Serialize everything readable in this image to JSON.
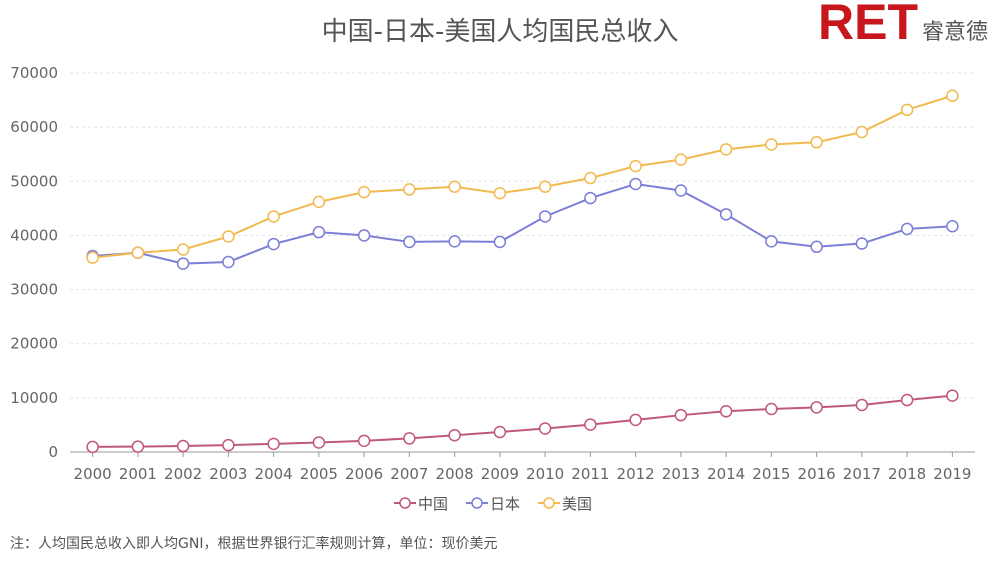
{
  "chart_data": {
    "type": "line",
    "title": "中国-日本-美国人均国民总收入",
    "xlabel": "",
    "ylabel": "",
    "categories": [
      "2000",
      "2001",
      "2002",
      "2003",
      "2004",
      "2005",
      "2006",
      "2007",
      "2008",
      "2009",
      "2010",
      "2011",
      "2012",
      "2013",
      "2014",
      "2015",
      "2016",
      "2017",
      "2018",
      "2019"
    ],
    "ylim": [
      0,
      70000
    ],
    "yticks": [
      "0",
      "10000",
      "20000",
      "30000",
      "40000",
      "50000",
      "60000",
      "70000"
    ],
    "grid": true,
    "legend_position": "bottom",
    "series": [
      {
        "name": "中国",
        "color": "#c0587e",
        "values": [
          940,
          1000,
          1100,
          1270,
          1500,
          1760,
          2060,
          2510,
          3100,
          3690,
          4340,
          5060,
          5940,
          6800,
          7520,
          7940,
          8250,
          8690,
          9600,
          10410
        ]
      },
      {
        "name": "日本",
        "color": "#7b7fd6",
        "values": [
          36200,
          36800,
          34800,
          35100,
          38400,
          40600,
          40000,
          38800,
          38900,
          38800,
          43500,
          46900,
          49500,
          48300,
          43900,
          38900,
          37900,
          38500,
          41200,
          41700
        ]
      },
      {
        "name": "美国",
        "color": "#f2b94f",
        "values": [
          35900,
          36800,
          37400,
          39800,
          43500,
          46200,
          48000,
          48500,
          49000,
          47800,
          49000,
          50600,
          52800,
          54000,
          55900,
          56800,
          57200,
          59100,
          63200,
          65800
        ]
      }
    ]
  },
  "logo": {
    "brand": "RET",
    "name": "睿意德"
  },
  "note": "注：人均国民总收入即人均GNI，根据世界银行汇率规则计算，单位：现价美元"
}
